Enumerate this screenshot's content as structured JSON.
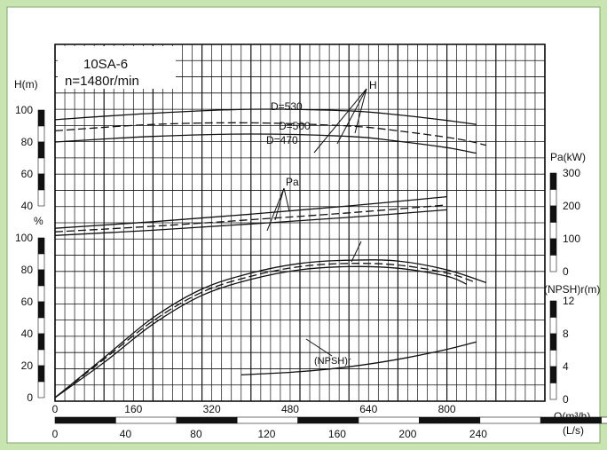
{
  "chart_data": {
    "type": "line",
    "model": "10SA-6",
    "speed": "n=1480r/min",
    "flow_axis": {
      "label": "Q(m³/h)",
      "ticks": [
        "0",
        "160",
        "320",
        "480",
        "640",
        "800"
      ],
      "range": [
        0,
        1000
      ]
    },
    "flow_ls_axis": {
      "label": "(L/s)",
      "ticks": [
        "0",
        "40",
        "80",
        "120",
        "160",
        "200",
        "240"
      ],
      "range": [
        0,
        277.8
      ]
    },
    "head_axis": {
      "label": "H(m)",
      "ticks": [
        "40",
        "60",
        "80",
        "100"
      ],
      "range": [
        40,
        110
      ]
    },
    "eff_axis": {
      "label": "%",
      "ticks": [
        "0",
        "20",
        "40",
        "60",
        "80",
        "100"
      ],
      "range": [
        0,
        100
      ]
    },
    "power_axis": {
      "label": "Pa(kW)",
      "ticks": [
        "0",
        "100",
        "200",
        "300"
      ],
      "range": [
        0,
        300
      ]
    },
    "npsh_axis": {
      "label": "(NPSH)r(m)",
      "ticks": [
        "0",
        "4",
        "8",
        "12"
      ],
      "range": [
        0,
        12
      ]
    },
    "curve_labels": {
      "head": "H",
      "power": "Pa",
      "npsh": "(NPSH)r",
      "d530": "D=530",
      "d500": "D=500",
      "d470": "D=470"
    },
    "series": [
      {
        "name": "D=530",
        "kind": "head",
        "dash": "",
        "x": [
          0,
          200,
          400,
          600,
          700,
          800,
          860
        ],
        "y": [
          94,
          98,
          100.5,
          99.5,
          97,
          93.5,
          91
        ]
      },
      {
        "name": "D=500",
        "kind": "head",
        "dash": "9 4",
        "x": [
          0,
          200,
          400,
          600,
          700,
          820,
          880
        ],
        "y": [
          87,
          91,
          92,
          90,
          87,
          82,
          78
        ]
      },
      {
        "name": "D=470",
        "kind": "head",
        "dash": "",
        "x": [
          0,
          200,
          400,
          600,
          700,
          800,
          860
        ],
        "y": [
          80,
          83.5,
          85,
          83.5,
          80.5,
          76.5,
          73
        ]
      },
      {
        "kind": "power",
        "dash": "",
        "x": [
          0,
          200,
          400,
          600,
          800
        ],
        "y": [
          132,
          152,
          175,
          200,
          228
        ]
      },
      {
        "kind": "power",
        "dash": "9 4",
        "x": [
          0,
          200,
          400,
          600,
          800
        ],
        "y": [
          121,
          138,
          158,
          179,
          203
        ]
      },
      {
        "kind": "power",
        "dash": "",
        "x": [
          0,
          200,
          400,
          600,
          800
        ],
        "y": [
          110,
          126,
          145,
          165,
          188
        ]
      },
      {
        "kind": "efficiency",
        "dash": "",
        "x": [
          0,
          100,
          200,
          300,
          400,
          500,
          600,
          700,
          800,
          880
        ],
        "y": [
          0,
          25,
          50,
          68,
          78,
          84,
          86,
          85.5,
          80,
          72
        ]
      },
      {
        "kind": "efficiency",
        "dash": "9 4",
        "x": [
          0,
          100,
          200,
          300,
          400,
          500,
          600,
          700,
          800,
          860
        ],
        "y": [
          0,
          24,
          48,
          66,
          76,
          82,
          84,
          83,
          78,
          72
        ]
      },
      {
        "kind": "efficiency",
        "dash": "",
        "x": [
          0,
          100,
          200,
          300,
          400,
          500,
          600,
          700,
          800,
          840
        ],
        "y": [
          0,
          22,
          46,
          64,
          74,
          80,
          82,
          81,
          76,
          71
        ]
      },
      {
        "kind": "npsh",
        "dash": "",
        "x": [
          380,
          480,
          560,
          640,
          720,
          800,
          860
        ],
        "y": [
          3.0,
          3.3,
          3.7,
          4.3,
          5.1,
          6.1,
          7.0
        ]
      }
    ]
  }
}
